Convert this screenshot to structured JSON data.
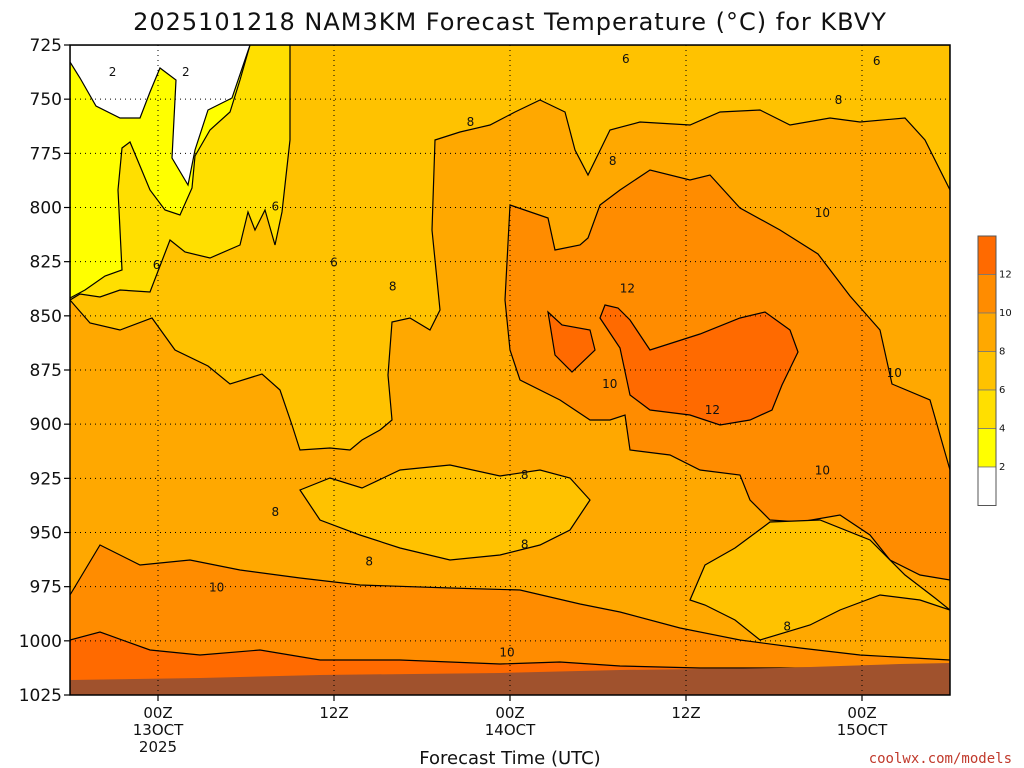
{
  "chart_data": {
    "type": "heatmap",
    "title": "2025101218 NAM3KM Forecast Temperature (°C) for KBVY",
    "xlabel": "Forecast Time (UTC)",
    "ylabel": "",
    "y_axis": {
      "ticks": [
        725,
        750,
        775,
        800,
        825,
        850,
        875,
        900,
        925,
        950,
        975,
        1000,
        1025
      ],
      "range": [
        725,
        1025
      ],
      "inverted": true
    },
    "x_axis": {
      "ticks": [
        {
          "hour": 6,
          "lines": [
            "00Z",
            "13OCT",
            "2025"
          ]
        },
        {
          "hour": 18,
          "lines": [
            "12Z"
          ]
        },
        {
          "hour": 30,
          "lines": [
            "00Z",
            "14OCT"
          ]
        },
        {
          "hour": 42,
          "lines": [
            "12Z"
          ]
        },
        {
          "hour": 54,
          "lines": [
            "00Z",
            "15OCT"
          ]
        }
      ],
      "range": [
        0,
        60
      ]
    },
    "grid": true,
    "colorbar": {
      "levels": [
        0,
        2,
        4,
        6,
        8,
        10,
        12,
        14
      ],
      "tick_labels": [
        "2",
        "4",
        "6",
        "8",
        "10",
        "12"
      ],
      "colors": [
        "#ffffff",
        "#ffff00",
        "#ffdf00",
        "#ffc200",
        "#ffa800",
        "#ff8c00",
        "#ff6a00"
      ],
      "placement": "right"
    },
    "contour_labels": [
      {
        "hour": 2.9,
        "p": 737,
        "v": "2"
      },
      {
        "hour": 7.9,
        "p": 737,
        "v": "2"
      },
      {
        "hour": 37.9,
        "p": 731,
        "v": "6"
      },
      {
        "hour": 55.0,
        "p": 732,
        "v": "6"
      },
      {
        "hour": 27.3,
        "p": 760,
        "v": "8"
      },
      {
        "hour": 37.0,
        "p": 778,
        "v": "8"
      },
      {
        "hour": 52.4,
        "p": 750,
        "v": "8"
      },
      {
        "hour": 14.0,
        "p": 799,
        "v": "6"
      },
      {
        "hour": 5.9,
        "p": 826,
        "v": "6"
      },
      {
        "hour": 18.0,
        "p": 825,
        "v": "6"
      },
      {
        "hour": 22.0,
        "p": 836,
        "v": "8"
      },
      {
        "hour": 38.0,
        "p": 837,
        "v": "12"
      },
      {
        "hour": 51.3,
        "p": 802,
        "v": "10"
      },
      {
        "hour": 36.8,
        "p": 881,
        "v": "10"
      },
      {
        "hour": 43.8,
        "p": 893,
        "v": "12"
      },
      {
        "hour": 56.2,
        "p": 876,
        "v": "10"
      },
      {
        "hour": 14.0,
        "p": 940,
        "v": "8"
      },
      {
        "hour": 20.4,
        "p": 963,
        "v": "8"
      },
      {
        "hour": 31.0,
        "p": 923,
        "v": "8"
      },
      {
        "hour": 31.0,
        "p": 955,
        "v": "8"
      },
      {
        "hour": 51.3,
        "p": 921,
        "v": "10"
      },
      {
        "hour": 10.0,
        "p": 975,
        "v": "10"
      },
      {
        "hour": 29.8,
        "p": 1005,
        "v": "10"
      },
      {
        "hour": 48.9,
        "p": 993,
        "v": "8"
      }
    ],
    "credit": "coolwx.com/models"
  }
}
